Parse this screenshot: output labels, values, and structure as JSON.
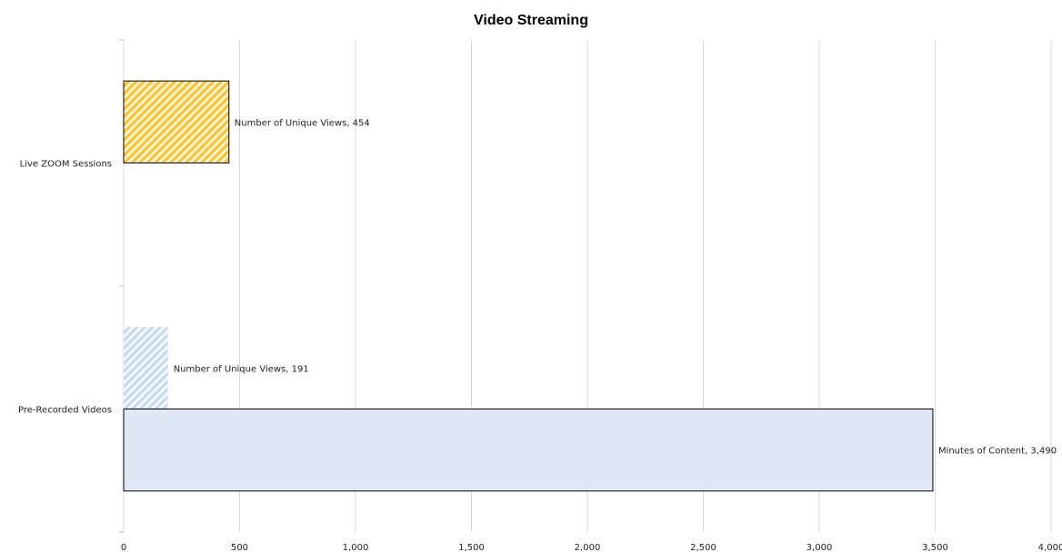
{
  "chart_data": {
    "type": "bar",
    "orientation": "horizontal",
    "title": "Video Streaming",
    "xlabel": "",
    "ylabel": "",
    "xlim": [
      0,
      4000
    ],
    "x_ticks": [
      0,
      500,
      1000,
      1500,
      2000,
      2500,
      3000,
      3500,
      4000
    ],
    "x_tick_labels": [
      "0",
      "500",
      "1,000",
      "1,500",
      "2,000",
      "2,500",
      "3,000",
      "3,500",
      "4,000"
    ],
    "grid": true,
    "categories": [
      "Live ZOOM Sessions",
      "Pre-Recorded Videos"
    ],
    "series": [
      {
        "name": "Number of Unique Views",
        "points": [
          {
            "category": "Live ZOOM Sessions",
            "value": 454,
            "label": "Number of Unique Views, 454",
            "fill": "#f6c22e",
            "pattern": "hatch"
          },
          {
            "category": "Pre-Recorded Videos",
            "value": 191,
            "label": "Number of Unique Views, 191",
            "fill": "#c6d8ef",
            "pattern": "hatch"
          }
        ]
      },
      {
        "name": "Minutes of Content",
        "points": [
          {
            "category": "Pre-Recorded Videos",
            "value": 3490,
            "label": "Minutes of Content, 3,490",
            "fill": "#dfe8f4",
            "pattern": "solid"
          }
        ]
      }
    ]
  }
}
